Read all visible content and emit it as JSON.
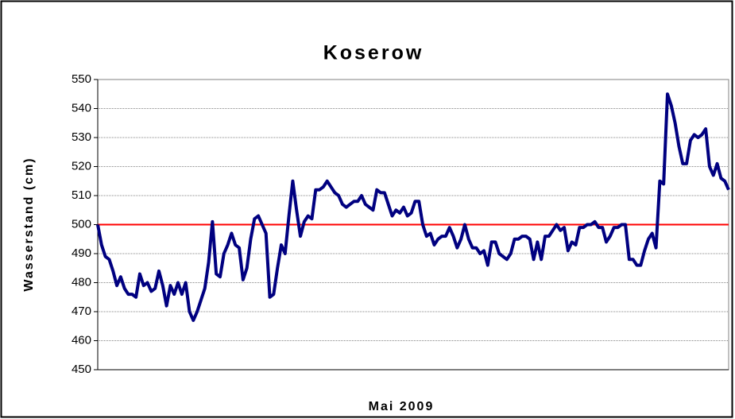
{
  "chart_data": {
    "type": "line",
    "title": "Koserow",
    "x_label": "Mai 2009",
    "y_label": "Wasserstand (cm)",
    "ylim": [
      450,
      550
    ],
    "yticks": [
      450,
      460,
      470,
      480,
      490,
      500,
      510,
      520,
      530,
      540,
      550
    ],
    "grid": true,
    "reference_line": {
      "value": 500,
      "color": "#ff0000"
    },
    "series": [
      {
        "color": "#000080",
        "values": [
          500,
          493,
          489,
          488,
          484,
          479,
          482,
          478,
          476,
          476,
          475,
          483,
          479,
          480,
          477,
          478,
          484,
          479,
          472,
          479,
          476,
          480,
          476,
          480,
          470,
          467,
          470,
          474,
          478,
          487,
          501,
          483,
          482,
          490,
          493,
          497,
          493,
          492,
          481,
          485,
          495,
          502,
          503,
          500,
          497,
          475,
          476,
          485,
          493,
          490,
          503,
          515,
          505,
          496,
          501,
          503,
          502,
          512,
          512,
          513,
          515,
          513,
          511,
          510,
          507,
          506,
          507,
          508,
          508,
          510,
          507,
          506,
          505,
          512,
          511,
          511,
          507,
          503,
          505,
          504,
          506,
          503,
          504,
          508,
          508,
          500,
          496,
          497,
          493,
          495,
          496,
          496,
          499,
          496,
          492,
          495,
          500,
          495,
          492,
          492,
          490,
          491,
          486,
          494,
          494,
          490,
          489,
          488,
          490,
          495,
          495,
          496,
          496,
          495,
          488,
          494,
          488,
          496,
          496,
          498,
          500,
          498,
          499,
          491,
          494,
          493,
          499,
          499,
          500,
          500,
          501,
          499,
          499,
          494,
          496,
          499,
          499,
          500,
          500,
          488,
          488,
          486,
          486,
          491,
          495,
          497,
          492,
          515,
          514,
          545,
          541,
          535,
          527,
          521,
          521,
          529,
          531,
          530,
          531,
          533,
          520,
          517,
          521,
          516,
          515,
          512
        ]
      }
    ]
  }
}
